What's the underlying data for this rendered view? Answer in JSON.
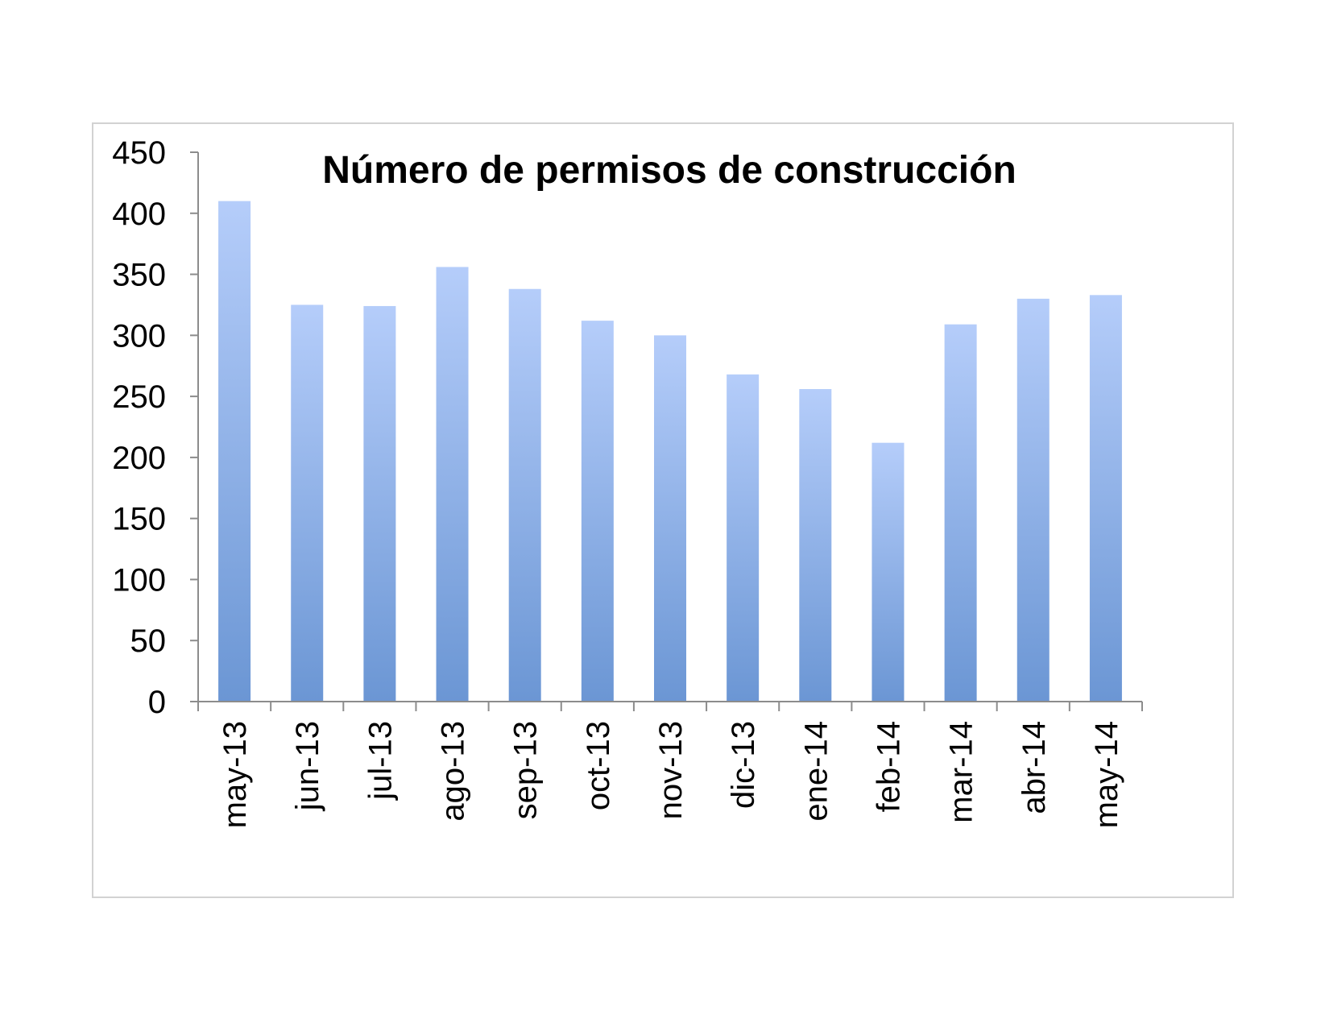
{
  "colors": {
    "bar_top": "#b5cdfa",
    "bar_bottom": "#6b96d4",
    "axis": "#8c8c8c",
    "frame": "#d2d2d2"
  },
  "chart_data": {
    "type": "bar",
    "title": "Número de permisos de construcción",
    "xlabel": "",
    "ylabel": "",
    "ylim": [
      0,
      450
    ],
    "yticks": [
      0,
      50,
      100,
      150,
      200,
      250,
      300,
      350,
      400,
      450
    ],
    "grid": false,
    "legend": "none",
    "categories": [
      "may-13",
      "jun-13",
      "jul-13",
      "ago-13",
      "sep-13",
      "oct-13",
      "nov-13",
      "dic-13",
      "ene-14",
      "feb-14",
      "mar-14",
      "abr-14",
      "may-14"
    ],
    "values": [
      410,
      325,
      324,
      356,
      338,
      312,
      300,
      268,
      256,
      212,
      309,
      330,
      333
    ]
  }
}
